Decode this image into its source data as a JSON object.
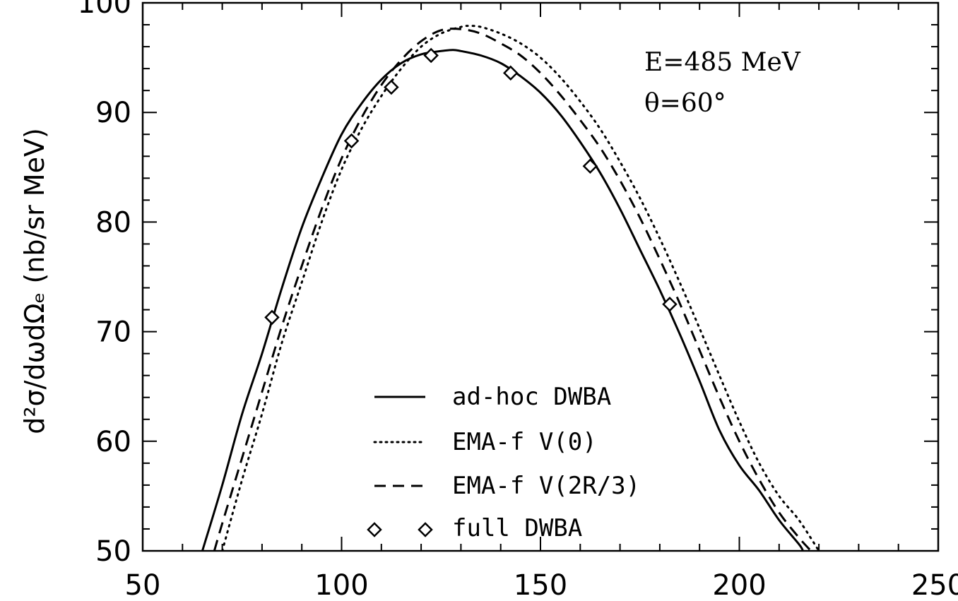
{
  "chart_data": {
    "type": "line",
    "title": "",
    "xlabel": "",
    "ylabel": "d²σ/dωdΩₑ (nb/sr MeV)",
    "xlim": [
      50,
      250
    ],
    "ylim": [
      50,
      100
    ],
    "x_ticks": [
      "50",
      "100",
      "150",
      "200",
      "250"
    ],
    "y_ticks": [
      "50",
      "60",
      "70",
      "80",
      "90",
      "100"
    ],
    "grid": false,
    "legend_position": "bottom-center",
    "annotations": [
      "E=485 MeV",
      "θ=60°"
    ],
    "series": [
      {
        "name": "ad-hoc DWBA",
        "style": "solid",
        "x": [
          65,
          70,
          75,
          80,
          85,
          90,
          95,
          100,
          105,
          110,
          115,
          120,
          125,
          128,
          130,
          135,
          140,
          145,
          150,
          155,
          160,
          165,
          170,
          175,
          180,
          185,
          190,
          195,
          200,
          205,
          210,
          215,
          216
        ],
        "y": [
          50,
          56,
          62.5,
          68,
          74,
          79.5,
          84,
          88,
          90.8,
          93,
          94.5,
          95.3,
          95.6,
          95.7,
          95.6,
          95.2,
          94.5,
          93.3,
          91.8,
          89.8,
          87.3,
          84.5,
          81.2,
          77.5,
          73.8,
          69.8,
          65.5,
          61,
          57.8,
          55.5,
          52.8,
          50.6,
          50
        ]
      },
      {
        "name": "EMA-f V(0)",
        "style": "dotted",
        "x": [
          70,
          75,
          80,
          85,
          90,
          95,
          100,
          105,
          110,
          115,
          120,
          125,
          130,
          132,
          135,
          140,
          145,
          150,
          155,
          160,
          165,
          170,
          175,
          180,
          185,
          190,
          195,
          200,
          205,
          210,
          215,
          220
        ],
        "y": [
          50,
          56.5,
          62.5,
          69,
          74.5,
          80,
          84.8,
          88.5,
          91.5,
          94,
          96,
          97.2,
          97.8,
          97.9,
          97.8,
          97.2,
          96.3,
          95,
          93.2,
          91,
          88.5,
          85.5,
          82.2,
          78.5,
          74.5,
          70.3,
          66,
          61.8,
          58,
          55,
          52.8,
          50
        ]
      },
      {
        "name": "EMA-f V(2R/3)",
        "style": "dashed",
        "x": [
          68,
          70,
          75,
          80,
          85,
          90,
          95,
          100,
          105,
          110,
          115,
          120,
          125,
          130,
          135,
          140,
          145,
          150,
          155,
          160,
          165,
          170,
          175,
          180,
          185,
          190,
          195,
          200,
          205,
          210,
          215,
          218
        ],
        "y": [
          50,
          52.5,
          58.5,
          64.5,
          70.5,
          76,
          81.2,
          85.8,
          89.5,
          92.5,
          94.8,
          96.5,
          97.5,
          97.6,
          97.2,
          96.3,
          95.2,
          93.6,
          91.6,
          89.3,
          86.8,
          83.8,
          80.4,
          76.6,
          72.6,
          68.3,
          64,
          60,
          56.5,
          53.5,
          51.2,
          50
        ]
      },
      {
        "name": "full DWBA",
        "style": "markers",
        "marker": "diamond",
        "x": [
          82.5,
          102.5,
          112.5,
          122.5,
          142.5,
          162.5,
          182.5
        ],
        "y": [
          71.3,
          87.4,
          92.3,
          95.2,
          93.6,
          85.1,
          72.5
        ]
      }
    ]
  }
}
